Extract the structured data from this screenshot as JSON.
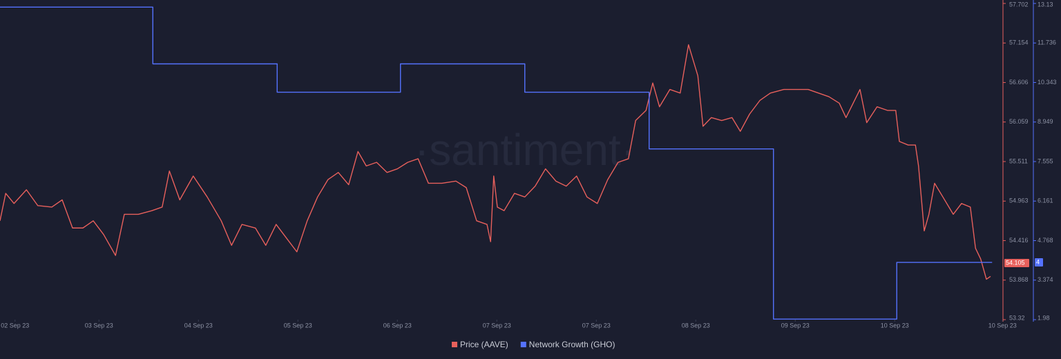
{
  "chart_data": {
    "type": "line",
    "watermark": "·santiment·",
    "xlim": [
      0,
      193.6
    ],
    "xticks": [
      {
        "value": 2.9,
        "label": "02 Sep 23"
      },
      {
        "value": 19.1,
        "label": "03 Sep 23"
      },
      {
        "value": 38.3,
        "label": "04 Sep 23"
      },
      {
        "value": 57.5,
        "label": "05 Sep 23"
      },
      {
        "value": 76.7,
        "label": "06 Sep 23"
      },
      {
        "value": 95.9,
        "label": "07 Sep 23"
      },
      {
        "value": 115.1,
        "label": "07 Sep 23"
      },
      {
        "value": 134.3,
        "label": "08 Sep 23"
      },
      {
        "value": 153.5,
        "label": "09 Sep 23"
      },
      {
        "value": 172.7,
        "label": "10 Sep 23"
      },
      {
        "value": 193.5,
        "label": "10 Sep 23"
      }
    ],
    "ylim": [
      53.32,
      57.702
    ],
    "yticks": [
      53.32,
      53.868,
      54.416,
      54.963,
      55.511,
      56.059,
      56.606,
      57.154,
      57.702
    ],
    "y2lim": [
      1.98,
      13.13
    ],
    "y2ticks": [
      1.98,
      3.374,
      4.768,
      6.161,
      7.555,
      8.949,
      10.343,
      11.736,
      13.13
    ],
    "series": [
      {
        "name": "Price (AAVE)",
        "color": "#e8605c",
        "current_value": 54.105,
        "x": [
          0,
          1.1,
          2.7,
          5.1,
          7.3,
          10,
          12,
          14,
          16,
          18,
          20,
          22.3,
          24,
          26.7,
          29.3,
          31.3,
          32.7,
          34.7,
          37.3,
          40,
          42.7,
          44.7,
          46.7,
          49.3,
          51.3,
          53.3,
          55.3,
          57.3,
          59.3,
          61.3,
          63.3,
          65.3,
          67.3,
          69.1,
          70.7,
          72.7,
          74.7,
          76.7,
          78.7,
          80.7,
          82.7,
          85.3,
          88,
          90,
          92,
          94,
          94.7,
          95.3,
          96,
          97.3,
          99.3,
          101.3,
          103.3,
          105.3,
          107.3,
          109.3,
          111.3,
          113.3,
          115.3,
          117.3,
          119.3,
          121.3,
          122.7,
          124.7,
          126,
          127.3,
          129.3,
          131.3,
          132.9,
          134.7,
          135.7,
          137.3,
          139.3,
          141.3,
          142.9,
          144.7,
          146.7,
          148.7,
          151.3,
          154,
          156,
          158,
          160,
          162,
          163.3,
          166,
          167.3,
          169.3,
          171.3,
          172.9,
          173.6,
          175.3,
          176.7,
          177.3,
          178.4,
          179.3,
          180.4,
          182,
          184,
          185.6,
          187.3,
          188.3,
          189.3,
          190.4,
          191.2
        ],
        "values": [
          54.69,
          55.07,
          54.93,
          55.12,
          54.9,
          54.88,
          54.98,
          54.59,
          54.59,
          54.69,
          54.5,
          54.21,
          54.78,
          54.78,
          54.83,
          54.88,
          55.38,
          54.98,
          55.31,
          55.02,
          54.69,
          54.35,
          54.64,
          54.59,
          54.35,
          54.64,
          54.45,
          54.26,
          54.69,
          55.02,
          55.26,
          55.36,
          55.19,
          55.65,
          55.45,
          55.5,
          55.36,
          55.41,
          55.5,
          55.55,
          55.21,
          55.21,
          55.24,
          55.15,
          54.69,
          54.64,
          54.4,
          55.31,
          54.88,
          54.83,
          55.07,
          55.02,
          55.17,
          55.41,
          55.24,
          55.17,
          55.31,
          55.02,
          54.93,
          55.26,
          55.5,
          55.55,
          56.08,
          56.22,
          56.6,
          56.27,
          56.51,
          56.46,
          57.13,
          56.7,
          56.0,
          56.12,
          56.08,
          56.12,
          55.93,
          56.17,
          56.36,
          56.46,
          56.51,
          56.51,
          56.51,
          56.46,
          56.41,
          56.32,
          56.12,
          56.51,
          56.05,
          56.27,
          56.22,
          56.22,
          55.79,
          55.74,
          55.74,
          55.45,
          54.55,
          54.78,
          55.21,
          55.02,
          54.78,
          54.93,
          54.88,
          54.31,
          54.16,
          53.88,
          53.92
        ]
      },
      {
        "name": "Network Growth (GHO)",
        "color": "#5572ff",
        "axis": "y2",
        "current_value": 4,
        "x": [
          0,
          29.5,
          53.5,
          77.3,
          101.3,
          125.3,
          149.3,
          173.1,
          191.5
        ],
        "values": [
          13,
          11,
          10,
          11,
          10,
          8,
          2,
          4,
          4
        ]
      }
    ]
  }
}
